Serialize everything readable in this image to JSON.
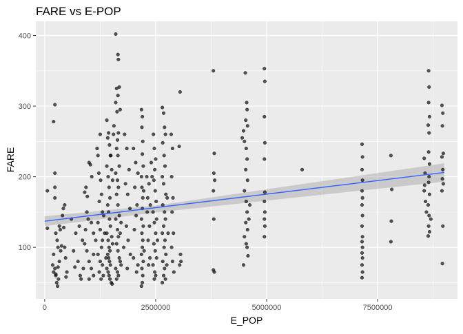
{
  "chart_data": {
    "type": "scatter",
    "title": "FARE vs E-POP",
    "xlabel": "E_POP",
    "ylabel": "FARE",
    "xlim": [
      -200000,
      9300000
    ],
    "ylim": [
      27,
      420
    ],
    "x_ticks": [
      0,
      2500000,
      5000000,
      7500000
    ],
    "x_tick_labels": [
      "0",
      "2500000",
      "5000000",
      "7500000"
    ],
    "y_ticks": [
      100,
      200,
      300,
      400
    ],
    "y_tick_labels": [
      "100",
      "200",
      "300",
      "400"
    ],
    "grid": true,
    "legend": "none",
    "trend": {
      "method": "lm",
      "x_start": 0,
      "y_start": 137,
      "x_end": 9000000,
      "y_end": 206,
      "ci_start": [
        130,
        144
      ],
      "ci_mid": [
        150,
        160
      ],
      "ci_end": [
        193,
        219
      ],
      "x_mid": 2600000
    },
    "colors": {
      "panel": "#ebebeb",
      "grid_major": "#ffffff",
      "point": "#000000",
      "line": "#3366ff",
      "ribbon": "#999999"
    },
    "points": [
      [
        60000,
        180
      ],
      [
        60000,
        127
      ],
      [
        200000,
        278
      ],
      [
        230000,
        302
      ],
      [
        230000,
        205
      ],
      [
        230000,
        185
      ],
      [
        200000,
        90
      ],
      [
        180000,
        75
      ],
      [
        200000,
        65
      ],
      [
        230000,
        70
      ],
      [
        250000,
        60
      ],
      [
        270000,
        50
      ],
      [
        290000,
        45
      ],
      [
        310000,
        55
      ],
      [
        250000,
        120
      ],
      [
        280000,
        110
      ],
      [
        300000,
        100
      ],
      [
        330000,
        130
      ],
      [
        350000,
        125
      ],
      [
        230000,
        170
      ],
      [
        330000,
        80
      ],
      [
        360000,
        95
      ],
      [
        250000,
        62
      ],
      [
        300000,
        72
      ],
      [
        420000,
        155
      ],
      [
        450000,
        160
      ],
      [
        400000,
        145
      ],
      [
        430000,
        128
      ],
      [
        450000,
        100
      ],
      [
        470000,
        85
      ],
      [
        500000,
        65
      ],
      [
        480000,
        58
      ],
      [
        380000,
        102
      ],
      [
        600000,
        140
      ],
      [
        700000,
        120
      ],
      [
        650000,
        95
      ],
      [
        750000,
        80
      ],
      [
        800000,
        60
      ],
      [
        780000,
        130
      ],
      [
        850000,
        110
      ],
      [
        820000,
        55
      ],
      [
        870000,
        70
      ],
      [
        680000,
        72
      ],
      [
        900000,
        178
      ],
      [
        930000,
        185
      ],
      [
        960000,
        172
      ],
      [
        1000000,
        220
      ],
      [
        1030000,
        217
      ],
      [
        1060000,
        200
      ],
      [
        950000,
        150
      ],
      [
        980000,
        140
      ],
      [
        1050000,
        135
      ],
      [
        1100000,
        120
      ],
      [
        900000,
        105
      ],
      [
        950000,
        95
      ],
      [
        1000000,
        80
      ],
      [
        1050000,
        70
      ],
      [
        1100000,
        60
      ],
      [
        1000000,
        55
      ],
      [
        1100000,
        90
      ],
      [
        1150000,
        110
      ],
      [
        920000,
        125
      ],
      [
        1180000,
        240
      ],
      [
        1200000,
        230
      ],
      [
        1220000,
        205
      ],
      [
        1250000,
        260
      ],
      [
        1260000,
        195
      ],
      [
        1280000,
        175
      ],
      [
        1300000,
        150
      ],
      [
        1230000,
        165
      ],
      [
        1200000,
        135
      ],
      [
        1250000,
        125
      ],
      [
        1300000,
        110
      ],
      [
        1280000,
        100
      ],
      [
        1200000,
        90
      ],
      [
        1250000,
        80
      ],
      [
        1300000,
        75
      ],
      [
        1230000,
        65
      ],
      [
        1270000,
        55
      ],
      [
        1320000,
        60
      ],
      [
        1350000,
        120
      ],
      [
        1330000,
        145
      ],
      [
        1380000,
        85
      ],
      [
        1400000,
        280
      ],
      [
        1420000,
        255
      ],
      [
        1440000,
        262
      ],
      [
        1460000,
        245
      ],
      [
        1480000,
        230
      ],
      [
        1400000,
        215
      ],
      [
        1430000,
        200
      ],
      [
        1450000,
        185
      ],
      [
        1470000,
        170
      ],
      [
        1420000,
        160
      ],
      [
        1440000,
        150
      ],
      [
        1460000,
        140
      ],
      [
        1480000,
        130
      ],
      [
        1400000,
        120
      ],
      [
        1430000,
        110
      ],
      [
        1450000,
        100
      ],
      [
        1470000,
        95
      ],
      [
        1420000,
        90
      ],
      [
        1440000,
        85
      ],
      [
        1460000,
        80
      ],
      [
        1480000,
        75
      ],
      [
        1400000,
        70
      ],
      [
        1430000,
        65
      ],
      [
        1450000,
        60
      ],
      [
        1470000,
        55
      ],
      [
        1500000,
        50
      ],
      [
        1520000,
        48
      ],
      [
        1490000,
        230
      ],
      [
        1510000,
        210
      ],
      [
        1530000,
        195
      ],
      [
        1510000,
        115
      ],
      [
        1530000,
        105
      ],
      [
        1550000,
        260
      ],
      [
        1560000,
        272
      ],
      [
        1600000,
        402
      ],
      [
        1650000,
        373
      ],
      [
        1660000,
        366
      ],
      [
        1620000,
        325
      ],
      [
        1680000,
        327
      ],
      [
        1650000,
        315
      ],
      [
        1600000,
        305
      ],
      [
        1630000,
        292
      ],
      [
        1700000,
        295
      ],
      [
        1660000,
        262
      ],
      [
        1640000,
        252
      ],
      [
        1620000,
        240
      ],
      [
        1650000,
        230
      ],
      [
        1680000,
        215
      ],
      [
        1600000,
        205
      ],
      [
        1640000,
        195
      ],
      [
        1660000,
        185
      ],
      [
        1620000,
        175
      ],
      [
        1650000,
        160
      ],
      [
        1680000,
        145
      ],
      [
        1600000,
        140
      ],
      [
        1640000,
        125
      ],
      [
        1660000,
        115
      ],
      [
        1620000,
        105
      ],
      [
        1650000,
        95
      ],
      [
        1680000,
        85
      ],
      [
        1700000,
        80
      ],
      [
        1720000,
        75
      ],
      [
        1600000,
        70
      ],
      [
        1640000,
        65
      ],
      [
        1660000,
        60
      ],
      [
        1620000,
        55
      ],
      [
        1700000,
        120
      ],
      [
        1720000,
        135
      ],
      [
        1800000,
        260
      ],
      [
        1850000,
        240
      ],
      [
        1900000,
        210
      ],
      [
        1820000,
        190
      ],
      [
        1870000,
        175
      ],
      [
        1920000,
        155
      ],
      [
        1840000,
        130
      ],
      [
        1880000,
        110
      ],
      [
        1930000,
        90
      ],
      [
        1860000,
        70
      ],
      [
        1780000,
        100
      ],
      [
        2000000,
        240
      ],
      [
        2050000,
        220
      ],
      [
        2100000,
        205
      ],
      [
        2030000,
        185
      ],
      [
        2080000,
        160
      ],
      [
        2060000,
        145
      ],
      [
        2020000,
        125
      ],
      [
        2100000,
        75
      ],
      [
        2070000,
        65
      ],
      [
        2000000,
        85
      ],
      [
        2180000,
        295
      ],
      [
        2200000,
        285
      ],
      [
        2190000,
        270
      ],
      [
        2210000,
        250
      ],
      [
        2200000,
        232
      ],
      [
        2220000,
        215
      ],
      [
        2180000,
        200
      ],
      [
        2190000,
        185
      ],
      [
        2210000,
        170
      ],
      [
        2200000,
        155
      ],
      [
        2180000,
        140
      ],
      [
        2220000,
        130
      ],
      [
        2190000,
        120
      ],
      [
        2210000,
        110
      ],
      [
        2200000,
        100
      ],
      [
        2180000,
        90
      ],
      [
        2220000,
        80
      ],
      [
        2190000,
        70
      ],
      [
        2210000,
        60
      ],
      [
        2200000,
        50
      ],
      [
        2180000,
        45
      ],
      [
        2230000,
        180
      ],
      [
        2240000,
        95
      ],
      [
        2300000,
        200
      ],
      [
        2350000,
        190
      ],
      [
        2320000,
        170
      ],
      [
        2380000,
        160
      ],
      [
        2360000,
        130
      ],
      [
        2330000,
        110
      ],
      [
        2370000,
        85
      ],
      [
        2310000,
        150
      ],
      [
        2400000,
        220
      ],
      [
        2340000,
        75
      ],
      [
        2450000,
        260
      ],
      [
        2470000,
        240
      ],
      [
        2500000,
        225
      ],
      [
        2480000,
        210
      ],
      [
        2460000,
        195
      ],
      [
        2490000,
        180
      ],
      [
        2510000,
        165
      ],
      [
        2440000,
        150
      ],
      [
        2470000,
        135
      ],
      [
        2500000,
        120
      ],
      [
        2460000,
        105
      ],
      [
        2490000,
        95
      ],
      [
        2520000,
        85
      ],
      [
        2440000,
        75
      ],
      [
        2480000,
        65
      ],
      [
        2500000,
        60
      ],
      [
        2470000,
        55
      ],
      [
        2520000,
        140
      ],
      [
        2540000,
        110
      ],
      [
        2420000,
        200
      ],
      [
        2650000,
        298
      ],
      [
        2680000,
        290
      ],
      [
        2700000,
        270
      ],
      [
        2720000,
        260
      ],
      [
        2660000,
        248
      ],
      [
        2690000,
        230
      ],
      [
        2710000,
        215
      ],
      [
        2650000,
        200
      ],
      [
        2680000,
        190
      ],
      [
        2730000,
        175
      ],
      [
        2660000,
        160
      ],
      [
        2700000,
        150
      ],
      [
        2720000,
        140
      ],
      [
        2680000,
        130
      ],
      [
        2650000,
        120
      ],
      [
        2710000,
        110
      ],
      [
        2690000,
        100
      ],
      [
        2730000,
        90
      ],
      [
        2660000,
        80
      ],
      [
        2700000,
        70
      ],
      [
        2680000,
        60
      ],
      [
        2720000,
        55
      ],
      [
        2650000,
        50
      ],
      [
        2760000,
        170
      ],
      [
        2780000,
        120
      ],
      [
        2750000,
        75
      ],
      [
        2850000,
        260
      ],
      [
        2880000,
        240
      ],
      [
        2860000,
        200
      ],
      [
        2890000,
        170
      ],
      [
        2870000,
        150
      ],
      [
        2900000,
        120
      ],
      [
        2860000,
        100
      ],
      [
        2880000,
        80
      ],
      [
        2910000,
        65
      ],
      [
        3050000,
        320
      ],
      [
        3030000,
        243
      ],
      [
        3060000,
        90
      ],
      [
        3070000,
        80
      ],
      [
        3040000,
        75
      ],
      [
        3800000,
        350
      ],
      [
        3820000,
        233
      ],
      [
        3810000,
        205
      ],
      [
        3830000,
        195
      ],
      [
        3800000,
        180
      ],
      [
        3810000,
        140
      ],
      [
        3800000,
        68
      ],
      [
        3820000,
        65
      ],
      [
        4450000,
        255
      ],
      [
        4480000,
        265
      ],
      [
        4520000,
        347
      ],
      [
        4550000,
        305
      ],
      [
        4560000,
        295
      ],
      [
        4530000,
        280
      ],
      [
        4570000,
        272
      ],
      [
        4500000,
        250
      ],
      [
        4540000,
        240
      ],
      [
        4560000,
        225
      ],
      [
        4530000,
        210
      ],
      [
        4570000,
        195
      ],
      [
        4500000,
        180
      ],
      [
        4540000,
        165
      ],
      [
        4560000,
        150
      ],
      [
        4530000,
        135
      ],
      [
        4570000,
        125
      ],
      [
        4500000,
        115
      ],
      [
        4540000,
        105
      ],
      [
        4560000,
        100
      ],
      [
        4480000,
        75
      ],
      [
        4600000,
        140
      ],
      [
        4620000,
        160
      ],
      [
        4580000,
        88
      ],
      [
        4950000,
        353
      ],
      [
        4960000,
        335
      ],
      [
        4950000,
        285
      ],
      [
        4960000,
        248
      ],
      [
        4950000,
        225
      ],
      [
        4960000,
        178
      ],
      [
        4950000,
        165
      ],
      [
        4960000,
        150
      ],
      [
        4950000,
        140
      ],
      [
        4960000,
        130
      ],
      [
        4950000,
        115
      ],
      [
        5800000,
        210
      ],
      [
        7150000,
        246
      ],
      [
        7160000,
        228
      ],
      [
        7150000,
        210
      ],
      [
        7160000,
        195
      ],
      [
        7150000,
        180
      ],
      [
        7160000,
        170
      ],
      [
        7150000,
        160
      ],
      [
        7160000,
        145
      ],
      [
        7150000,
        130
      ],
      [
        7160000,
        115
      ],
      [
        7150000,
        108
      ],
      [
        7160000,
        100
      ],
      [
        7150000,
        92
      ],
      [
        7160000,
        85
      ],
      [
        7150000,
        75
      ],
      [
        7160000,
        65
      ],
      [
        7150000,
        57
      ],
      [
        7800000,
        230
      ],
      [
        7820000,
        182
      ],
      [
        7810000,
        137
      ],
      [
        7800000,
        108
      ],
      [
        8550000,
        226
      ],
      [
        8570000,
        205
      ],
      [
        8560000,
        188
      ],
      [
        8550000,
        180
      ],
      [
        8580000,
        165
      ],
      [
        8600000,
        150
      ],
      [
        8650000,
        350
      ],
      [
        8660000,
        327
      ],
      [
        8650000,
        305
      ],
      [
        8670000,
        285
      ],
      [
        8640000,
        273
      ],
      [
        8660000,
        262
      ],
      [
        8650000,
        235
      ],
      [
        8670000,
        218
      ],
      [
        8660000,
        200
      ],
      [
        8650000,
        192
      ],
      [
        8670000,
        175
      ],
      [
        8640000,
        160
      ],
      [
        8660000,
        145
      ],
      [
        8650000,
        130
      ],
      [
        8670000,
        122
      ],
      [
        8640000,
        116
      ],
      [
        8700000,
        140
      ],
      [
        8950000,
        301
      ],
      [
        8970000,
        290
      ],
      [
        8960000,
        272
      ],
      [
        8980000,
        233
      ],
      [
        8950000,
        228
      ],
      [
        8970000,
        210
      ],
      [
        8960000,
        197
      ],
      [
        8980000,
        190
      ],
      [
        8950000,
        180
      ],
      [
        8970000,
        130
      ],
      [
        8960000,
        77
      ]
    ]
  }
}
